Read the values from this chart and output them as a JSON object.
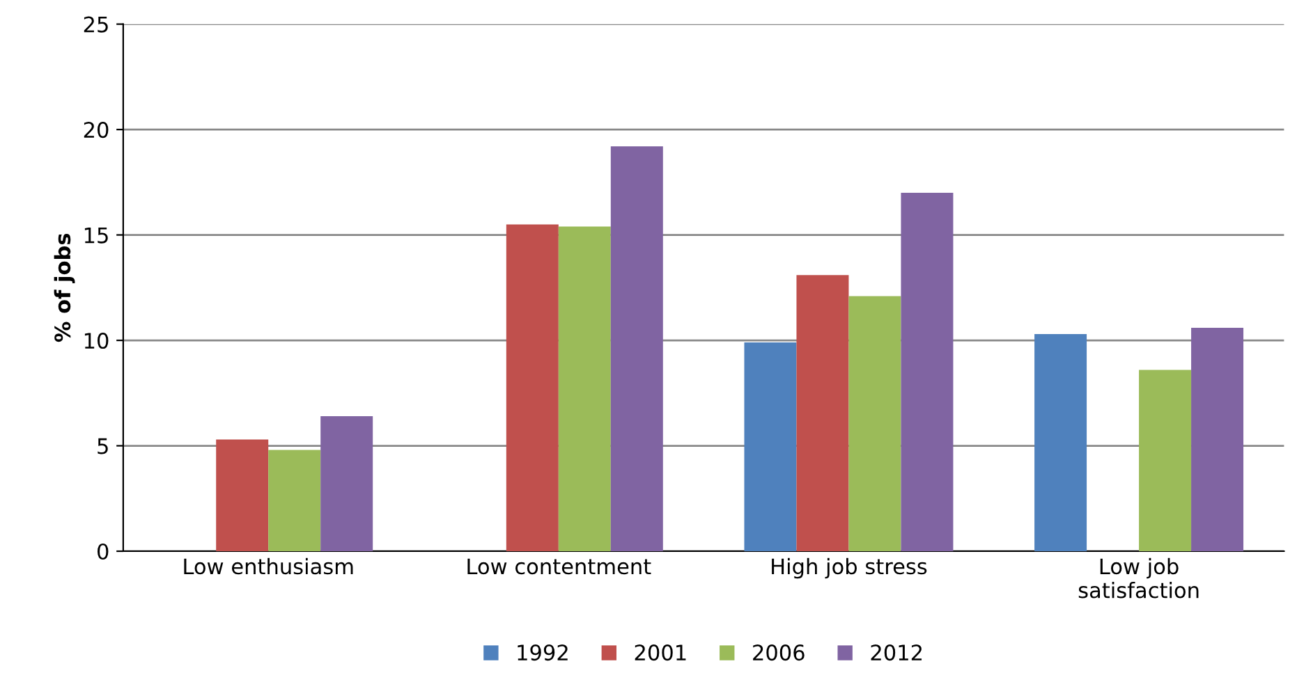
{
  "chart_data": {
    "type": "bar",
    "ylabel": "% of jobs",
    "categories": [
      "Low enthusiasm",
      "Low contentment",
      "High job stress",
      "Low job\nsatisfaction"
    ],
    "series": [
      {
        "name": "1992",
        "color": "#4f81bd",
        "values": [
          null,
          null,
          9.9,
          10.3
        ]
      },
      {
        "name": "2001",
        "color": "#c0504d",
        "values": [
          5.3,
          15.5,
          13.1,
          null
        ]
      },
      {
        "name": "2006",
        "color": "#9bbb59",
        "values": [
          4.8,
          15.4,
          12.1,
          8.6
        ]
      },
      {
        "name": "2012",
        "color": "#8064a2",
        "values": [
          6.4,
          19.2,
          17.0,
          10.6
        ]
      }
    ],
    "ylim": [
      0,
      25
    ],
    "yticks": [
      0,
      5,
      10,
      15,
      20,
      25
    ],
    "grid": "y",
    "legend": "bottom"
  }
}
